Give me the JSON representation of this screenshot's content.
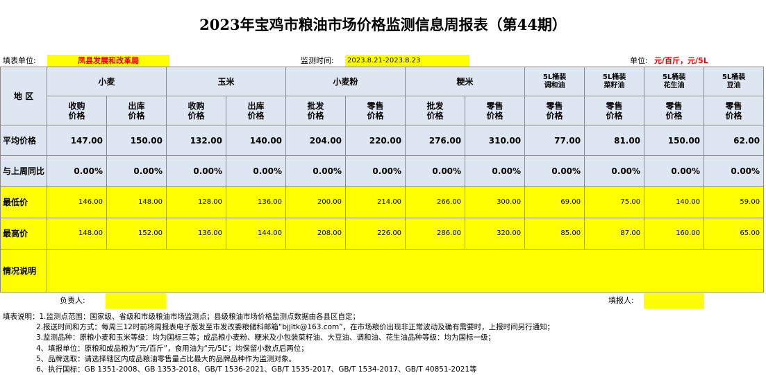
{
  "title": "2023年宝鸡市粮油市场价格监测信息周报表（第44期）",
  "meta": {
    "filler_label": "填表单位:",
    "filler_value": "凤县发展和改革局",
    "period_label": "监测时间:",
    "period_value": "2023.8.21-2023.8.23",
    "unit_label": "单位:",
    "unit_value": "元/百斤，元/5L"
  },
  "table": {
    "region_label": "地  区",
    "groups": [
      {
        "label": "小麦",
        "subs": [
          "收购\n价格",
          "出库\n价格"
        ]
      },
      {
        "label": "玉米",
        "subs": [
          "收购\n价格",
          "出库\n价格"
        ]
      },
      {
        "label": "小麦粉",
        "subs": [
          "批发\n价格",
          "零售\n价格"
        ]
      },
      {
        "label": "粳米",
        "subs": [
          "批发\n价格",
          "零售\n价格"
        ]
      },
      {
        "label": "5L桶装\n调和油",
        "subs": [
          "零售\n价格"
        ]
      },
      {
        "label": "5L桶装\n菜籽油",
        "subs": [
          "零售\n价格"
        ]
      },
      {
        "label": "5L桶装\n花生油",
        "subs": [
          "零售\n价格"
        ]
      },
      {
        "label": "5L桶装\n豆油",
        "subs": [
          "零售\n价格"
        ]
      }
    ],
    "rows": [
      {
        "label": "平均价格",
        "values": [
          "147.00",
          "150.00",
          "132.00",
          "140.00",
          "204.00",
          "220.00",
          "276.00",
          "310.00",
          "77.00",
          "81.00",
          "150.00",
          "62.00"
        ]
      },
      {
        "label": "与上周同比",
        "values": [
          "0.00%",
          "0.00%",
          "0.00%",
          "0.00%",
          "0.00%",
          "0.00%",
          "0.00%",
          "0.00%",
          "0.00%",
          "0.00%",
          "0.00%",
          "0.00%"
        ]
      },
      {
        "label": "最低价",
        "values": [
          "146.00",
          "148.00",
          "128.00",
          "136.00",
          "200.00",
          "214.00",
          "266.00",
          "300.00",
          "69.00",
          "75.00",
          "140.00",
          "59.00"
        ]
      },
      {
        "label": "最高价",
        "values": [
          "148.00",
          "152.00",
          "136.00",
          "144.00",
          "208.00",
          "226.00",
          "286.00",
          "320.00",
          "85.00",
          "87.00",
          "160.00",
          "65.00"
        ]
      }
    ],
    "notes_row_label": "情况说明"
  },
  "signature": {
    "responsible_label": "负责人:",
    "filler_person_label": "填报人:"
  },
  "notes": {
    "lead": "填表说明：",
    "lines": [
      "1.监测点范围：国家级、省级和市级粮油市场监测点；县级粮油市场价格监测点数据由各县区自定；",
      "2.报送时间和方式：每周三12时前将周报表电子版发至市发改委粮储科邮箱“bjjltk@163.com”，在市场粮价出现非正常波动及确有需要时，上报时间另行通知；",
      "3.监测品种：原粮小麦和玉米等级：均为国标三等；成品粮小麦粉、粳米及小包装菜籽油、大豆油、调和油、花生油品种等级：均为国标一级；",
      "4、填报单位：原粮和成品粮为“元/百斤”，食用油为“元/5L”；均保留小数点后两位；",
      "5、品牌选取：请选择辖区内成品粮油零售量占比最大的品牌品种作为监测对象。",
      "6、执行国标：GB 1351-2008、GB 1353-2018、GB/T 1536-2021、GB/T 1535-2017、GB/T 1534-2017、GB/T 40851-2021等"
    ]
  },
  "colors": {
    "header_bg": "#dde6f1",
    "highlight": "#ffff00",
    "unit_text": "#e00000"
  }
}
